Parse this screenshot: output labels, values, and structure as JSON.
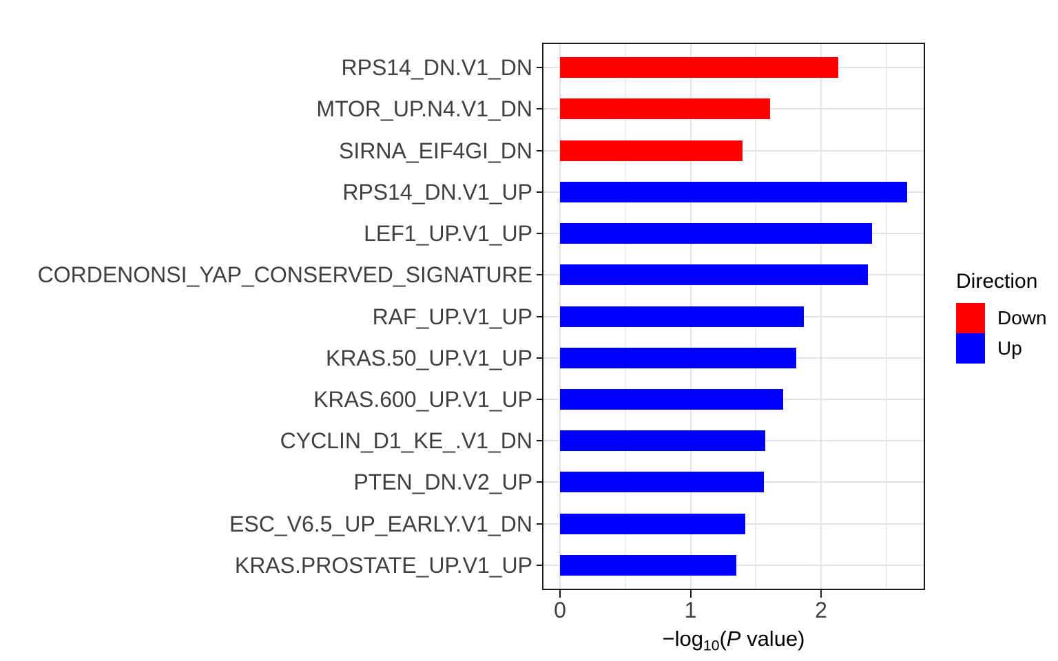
{
  "chart_data": {
    "type": "bar",
    "orientation": "horizontal",
    "title": "",
    "xlabel": "−log10(P value)",
    "xlabel_parts": {
      "minus_log": "−log",
      "subscript": "10",
      "open_paren": "(",
      "p_italic": "P",
      "tail": " value)"
    },
    "ylabel": "",
    "x_axis": {
      "major_ticks": [
        0,
        1,
        2
      ],
      "tick_labels": [
        "0",
        "1",
        "2"
      ],
      "minor_ticks": [
        0.5,
        1.5,
        2.5
      ],
      "range": [
        -0.13,
        2.8
      ],
      "grid": "on"
    },
    "categories": [
      "RPS14_DN.V1_DN",
      "MTOR_UP.N4.V1_DN",
      "SIRNA_EIF4GI_DN",
      "RPS14_DN.V1_UP",
      "LEF1_UP.V1_UP",
      "CORDENONSI_YAP_CONSERVED_SIGNATURE",
      "RAF_UP.V1_UP",
      "KRAS.50_UP.V1_UP",
      "KRAS.600_UP.V1_UP",
      "CYCLIN_D1_KE_.V1_DN",
      "PTEN_DN.V2_UP",
      "ESC_V6.5_UP_EARLY.V1_DN",
      "KRAS.PROSTATE_UP.V1_UP"
    ],
    "values": [
      2.13,
      1.61,
      1.4,
      2.66,
      2.39,
      2.36,
      1.87,
      1.81,
      1.71,
      1.57,
      1.56,
      1.42,
      1.35
    ],
    "directions": [
      "Down",
      "Down",
      "Down",
      "Up",
      "Up",
      "Up",
      "Up",
      "Up",
      "Up",
      "Up",
      "Up",
      "Up",
      "Up"
    ],
    "colors": {
      "Down": "#FF0000",
      "Up": "#0000FF"
    },
    "legend": {
      "title": "Direction",
      "position": "right",
      "entries": [
        {
          "label": "Down",
          "color": "#FF0000"
        },
        {
          "label": "Up",
          "color": "#0000FF"
        }
      ]
    }
  }
}
